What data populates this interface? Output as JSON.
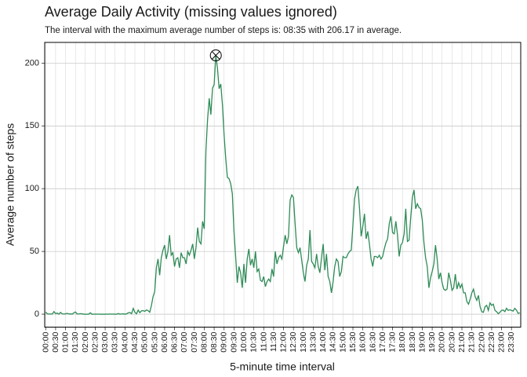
{
  "chart_data": {
    "type": "line",
    "title": "Average Daily Activity (missing values ignored)",
    "subtitle": "The interval with the maximum average number of steps is:  08:35 with 206.17 in average.",
    "x_label": "5-minute time interval",
    "y_label": "Average number of steps",
    "categories": [
      "00:00",
      null,
      null,
      null,
      null,
      null,
      "00:30",
      null,
      null,
      null,
      null,
      null,
      "01:00",
      null,
      null,
      null,
      null,
      null,
      "01:30",
      null,
      null,
      null,
      null,
      null,
      "02:00",
      null,
      null,
      null,
      null,
      null,
      "02:30",
      null,
      null,
      null,
      null,
      null,
      "03:00",
      null,
      null,
      null,
      null,
      null,
      "03:30",
      null,
      null,
      null,
      null,
      null,
      "04:00",
      null,
      null,
      null,
      null,
      null,
      "04:30",
      null,
      null,
      null,
      null,
      null,
      "05:00",
      null,
      null,
      null,
      null,
      null,
      "05:30",
      null,
      null,
      null,
      null,
      null,
      "06:00",
      null,
      null,
      null,
      null,
      null,
      "06:30",
      null,
      null,
      null,
      null,
      null,
      "07:00",
      null,
      null,
      null,
      null,
      null,
      "07:30",
      null,
      null,
      null,
      null,
      null,
      "08:00",
      null,
      null,
      null,
      null,
      null,
      "08:30",
      null,
      null,
      null,
      null,
      null,
      "09:00",
      null,
      null,
      null,
      null,
      null,
      "09:30",
      null,
      null,
      null,
      null,
      null,
      "10:00",
      null,
      null,
      null,
      null,
      null,
      "10:30",
      null,
      null,
      null,
      null,
      null,
      "11:00",
      null,
      null,
      null,
      null,
      null,
      "11:30",
      null,
      null,
      null,
      null,
      null,
      "12:00",
      null,
      null,
      null,
      null,
      null,
      "12:30",
      null,
      null,
      null,
      null,
      null,
      "13:00",
      null,
      null,
      null,
      null,
      null,
      "13:30",
      null,
      null,
      null,
      null,
      null,
      "14:00",
      null,
      null,
      null,
      null,
      null,
      "14:30",
      null,
      null,
      null,
      null,
      null,
      "15:00",
      null,
      null,
      null,
      null,
      null,
      "15:30",
      null,
      null,
      null,
      null,
      null,
      "16:00",
      null,
      null,
      null,
      null,
      null,
      "16:30",
      null,
      null,
      null,
      null,
      null,
      "17:00",
      null,
      null,
      null,
      null,
      null,
      "17:30",
      null,
      null,
      null,
      null,
      null,
      "18:00",
      null,
      null,
      null,
      null,
      null,
      "18:30",
      null,
      null,
      null,
      null,
      null,
      "19:00",
      null,
      null,
      null,
      null,
      null,
      "19:30",
      null,
      null,
      null,
      null,
      null,
      "20:00",
      null,
      null,
      null,
      null,
      null,
      "20:30",
      null,
      null,
      null,
      null,
      null,
      "21:00",
      null,
      null,
      null,
      null,
      null,
      "21:30",
      null,
      null,
      null,
      null,
      null,
      "22:00",
      null,
      null,
      null,
      null,
      null,
      "22:30",
      null,
      null,
      null,
      null,
      null,
      "23:00",
      null,
      null,
      null,
      null,
      null,
      "23:30",
      null,
      null,
      null,
      null,
      null
    ],
    "series": [
      {
        "name": "Average number of steps",
        "color": "#2e8b57",
        "values": [
          1.7,
          0.3,
          0.1,
          0.2,
          0.1,
          2.1,
          0.5,
          0.9,
          0,
          1.5,
          0.3,
          0.1,
          0.3,
          0.7,
          0.2,
          0.3,
          0,
          1.1,
          1.8,
          0.2,
          0.2,
          0.4,
          0.3,
          0,
          0,
          0,
          0,
          1.1,
          0,
          0,
          0.1,
          0,
          0.1,
          0,
          0,
          0,
          0,
          0.1,
          0,
          0.2,
          0,
          0.1,
          0,
          0,
          0.5,
          0,
          0.2,
          0.3,
          0,
          0.3,
          1.1,
          1.4,
          0.4,
          4.6,
          1.5,
          0.3,
          3.3,
          1.2,
          2.7,
          2.8,
          2.3,
          3.4,
          2.8,
          1.6,
          6.9,
          14,
          18,
          37,
          44,
          31,
          45,
          51,
          55,
          44,
          50,
          63,
          47,
          49,
          38,
          44,
          45,
          37,
          49,
          45,
          45,
          40,
          50,
          47,
          51,
          56,
          44,
          53,
          69,
          58,
          56,
          74,
          68,
          130,
          155,
          172,
          159,
          180,
          183,
          206.17,
          195.9,
          179.6,
          183.4,
          167,
          143,
          124,
          109,
          108,
          104,
          96,
          66,
          46,
          25,
          38,
          33,
          21,
          40,
          25,
          44,
          52,
          39,
          44,
          37,
          50,
          34,
          36,
          27,
          26,
          30,
          22,
          26,
          28,
          26,
          36,
          30,
          50,
          40,
          45,
          47,
          44,
          54,
          63,
          56,
          62,
          91,
          95,
          93,
          72,
          53,
          49,
          53,
          43,
          33,
          26,
          39,
          44,
          67,
          42,
          40,
          37,
          48,
          38,
          33,
          45,
          56,
          35,
          48,
          30,
          26,
          17,
          26,
          38,
          44,
          42,
          30,
          34,
          46,
          45,
          45,
          48,
          50,
          51,
          71,
          92,
          99,
          102,
          84,
          62,
          70,
          80,
          60,
          66,
          56,
          44,
          38,
          46,
          46,
          45,
          47,
          44,
          46,
          52,
          57,
          60,
          72,
          78,
          65,
          64,
          74,
          63,
          46,
          55,
          57,
          64,
          84,
          58,
          59,
          77,
          93,
          99,
          84,
          88,
          85,
          84,
          75,
          57,
          45,
          38,
          21,
          29,
          34,
          40,
          55,
          44,
          28,
          33,
          25,
          20,
          19,
          20,
          33,
          27,
          19,
          21,
          32,
          20,
          25,
          21,
          24,
          17,
          17,
          10,
          8,
          12,
          17,
          20,
          14,
          11,
          15,
          6,
          2,
          1.5,
          6,
          7,
          3,
          9,
          7,
          8,
          3,
          2,
          0.4,
          1.5,
          3,
          3.3,
          2,
          4.7,
          3,
          3.5,
          3,
          2.5,
          4.7,
          3.3,
          0.7,
          1.1
        ]
      }
    ],
    "ylim": [
      -10.3,
      216.5
    ],
    "yticks": [
      0,
      50,
      100,
      150,
      200
    ],
    "grid": true,
    "highlight_index": 103
  }
}
